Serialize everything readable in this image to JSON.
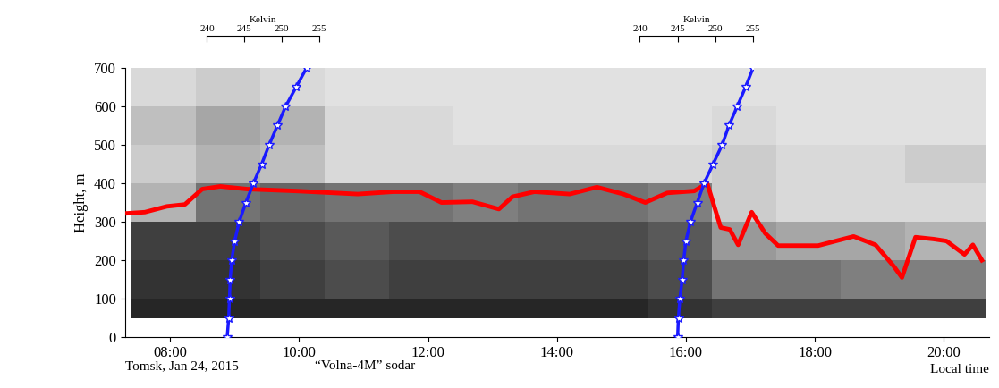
{
  "chart_data": {
    "type": "line",
    "xlabel": "Local time",
    "ylabel": "Height, m",
    "annotations": [
      "Tomsk, Jan 24, 2015",
      "“Volna-4M” sodar"
    ],
    "xlim": [
      7.3,
      20.7
    ],
    "xticks": [
      {
        "value": 8,
        "label": "08:00"
      },
      {
        "value": 10,
        "label": "10:00"
      },
      {
        "value": 12,
        "label": "12:00"
      },
      {
        "value": 14,
        "label": "14:00"
      },
      {
        "value": 16,
        "label": "16:00"
      },
      {
        "value": 18,
        "label": "18:00"
      },
      {
        "value": 20,
        "label": "20:00"
      }
    ],
    "ylim": [
      0,
      700
    ],
    "yticks": [
      0,
      100,
      200,
      300,
      400,
      500,
      600,
      700
    ],
    "series": [
      {
        "type": "line",
        "color": "#ff0000",
        "line_style": "solid",
        "x": [
          7.34,
          7.61,
          7.95,
          8.23,
          8.5,
          8.78,
          9.19,
          9.95,
          10.91,
          11.46,
          11.87,
          12.21,
          12.69,
          13.1,
          13.31,
          13.65,
          14.2,
          14.62,
          15.03,
          15.37,
          15.71,
          16.13,
          16.33,
          16.54,
          16.68,
          16.81,
          17.02,
          17.23,
          17.43,
          18.05,
          18.6,
          18.94,
          19.22,
          19.35,
          19.56,
          19.84,
          20.04,
          20.32,
          20.45,
          20.59
        ],
        "values": [
          322,
          325,
          340,
          345,
          385,
          392,
          385,
          380,
          372,
          378,
          378,
          350,
          352,
          333,
          365,
          378,
          372,
          390,
          372,
          350,
          375,
          380,
          400,
          285,
          280,
          240,
          325,
          270,
          238,
          238,
          262,
          240,
          185,
          155,
          260,
          255,
          250,
          215,
          240,
          200
        ]
      }
    ],
    "echogram": {
      "x": [
        7.4,
        8.4,
        9.4,
        10.4,
        11.4,
        12.4,
        13.4,
        14.4,
        15.4,
        16.4,
        17.4,
        18.4,
        19.4,
        20.65
      ],
      "y": [
        50,
        100,
        200,
        300,
        400,
        500,
        600,
        700
      ],
      "clim": [
        0,
        1
      ],
      "cells": [
        [
          0.85,
          0.85,
          0.85,
          0.85,
          0.85,
          0.85,
          0.85,
          0.85,
          0.8,
          0.75,
          0.75,
          0.75,
          0.75
        ],
        [
          0.8,
          0.8,
          0.75,
          0.7,
          0.75,
          0.75,
          0.75,
          0.75,
          0.7,
          0.55,
          0.55,
          0.5,
          0.5
        ],
        [
          0.75,
          0.75,
          0.7,
          0.65,
          0.7,
          0.7,
          0.7,
          0.7,
          0.65,
          0.4,
          0.35,
          0.35,
          0.3
        ],
        [
          0.3,
          0.55,
          0.6,
          0.55,
          0.55,
          0.5,
          0.55,
          0.55,
          0.5,
          0.2,
          0.15,
          0.15,
          0.15
        ],
        [
          0.2,
          0.3,
          0.25,
          0.15,
          0.15,
          0.15,
          0.15,
          0.15,
          0.15,
          0.2,
          0.15,
          0.15,
          0.2
        ],
        [
          0.25,
          0.35,
          0.3,
          0.15,
          0.15,
          0.12,
          0.12,
          0.12,
          0.12,
          0.15,
          0.12,
          0.12,
          0.12
        ],
        [
          0.15,
          0.2,
          0.15,
          0.12,
          0.12,
          0.12,
          0.12,
          0.12,
          0.12,
          0.12,
          0.12,
          0.12,
          0.12
        ]
      ]
    },
    "temperature_profiles": [
      {
        "axis_label": "Kelvin",
        "xlim": [
          240,
          255
        ],
        "xticks": [
          240,
          245,
          250,
          255
        ],
        "color": "#1a1aff",
        "marker": "star",
        "y": [
          0,
          50,
          100,
          150,
          200,
          250,
          300,
          350,
          400,
          450,
          500,
          550,
          600,
          650,
          700
        ],
        "values": [
          242.7,
          242.9,
          243.0,
          243.1,
          243.3,
          243.7,
          244.3,
          245.2,
          246.2,
          247.3,
          248.3,
          249.4,
          250.5,
          251.9,
          253.3
        ]
      },
      {
        "axis_label": "Kelvin",
        "xlim": [
          240,
          255
        ],
        "xticks": [
          240,
          245,
          250,
          255
        ],
        "color": "#1a1aff",
        "marker": "star",
        "y": [
          0,
          50,
          100,
          150,
          200,
          250,
          300,
          350,
          400,
          450,
          500,
          550,
          600,
          650,
          700
        ],
        "values": [
          245.0,
          245.1,
          245.3,
          245.6,
          245.8,
          246.1,
          246.7,
          247.6,
          248.5,
          249.7,
          250.9,
          251.8,
          252.9,
          254.0,
          255.0
        ]
      }
    ]
  }
}
